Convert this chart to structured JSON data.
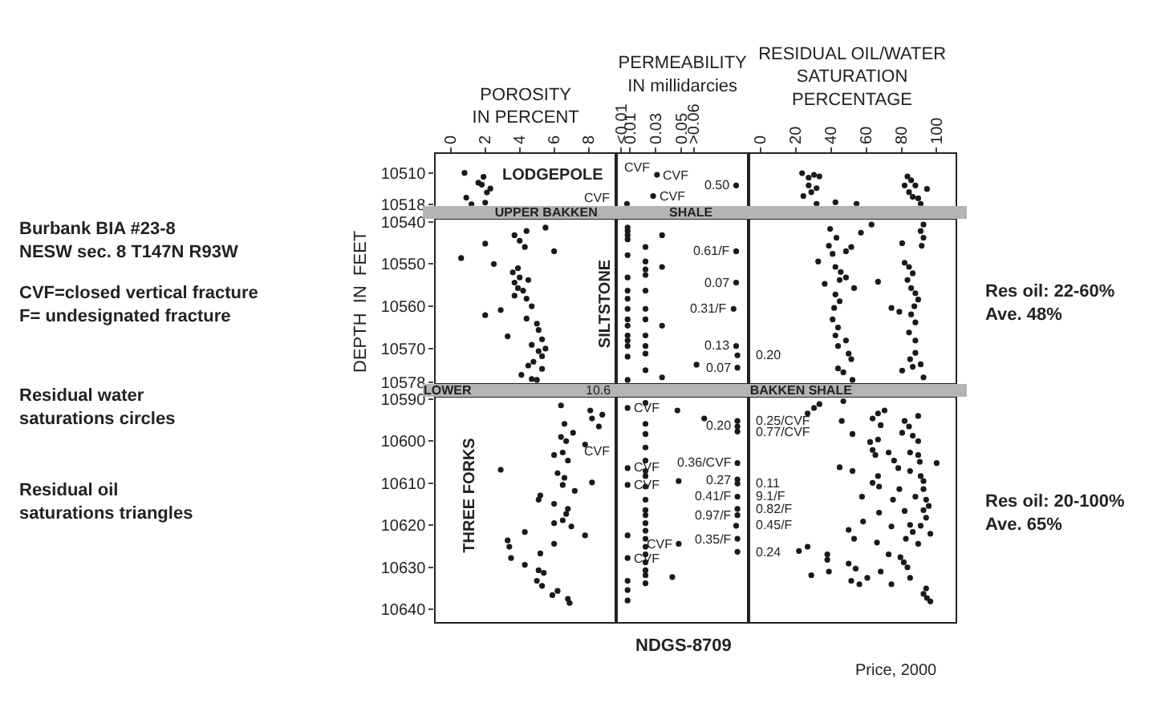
{
  "chart_data": [
    {
      "type": "scatter",
      "marker": "circle",
      "color": "#1a1a1a",
      "xlabel": "POROSITY\nIN PERCENT",
      "xlim": [
        -0.9,
        9.6
      ],
      "xticks": [
        0,
        2,
        4,
        6,
        8
      ],
      "ylim": [
        10518.4,
        10505.2
      ],
      "yticks": [
        10510,
        10518
      ],
      "x": [
        0.8,
        1.9,
        1.6,
        1.8,
        2.3,
        2.1,
        0.9,
        1.2,
        2.0
      ],
      "values": [
        10510,
        10511,
        10512.5,
        10513,
        10514,
        10515,
        10516.3,
        10518,
        10517.6
      ],
      "annotations": [
        "LODGEPOLE",
        "UPPER BAKKEN",
        "Burbank BIA #23-8\nNESW sec. 8 T147N R93W",
        "CVF=closed vertical fracture\nF= undesignated fracture",
        "Residual water\nsaturations circles",
        "Residual oil\nsaturations triangles"
      ]
    },
    {
      "type": "scatter",
      "marker": "circle",
      "color": "#1a1a1a",
      "xlabel": "PERMEABILITY\nIN millidarcies",
      "xlim": [
        -0.001,
        0.103
      ],
      "xticks": [
        {
          "value": 0.003,
          "label": "<0.01"
        },
        0.01,
        0.03,
        0.05,
        {
          "value": 0.06,
          "label": ">0.06"
        }
      ],
      "ylim": [
        10518.4,
        10505.2
      ],
      "tick_labels": "x",
      "x": [
        0.031,
        0.028,
        0.0075,
        0.093
      ],
      "values": [
        10510.5,
        10515.9,
        10517.9,
        10513.2
      ],
      "annotations": [
        "CVF",
        {
          "text": "CVF",
          "x": 0.031,
          "y": 10510.5
        },
        {
          "text": "CVF",
          "x": 0.028,
          "y": 10515.9
        },
        {
          "text": "CVF",
          "x": 0.0075,
          "y": 10517.9
        },
        {
          "text": "0.50",
          "x": 0.093,
          "y": 10513.2
        },
        "SHALE"
      ]
    },
    {
      "type": "scatter",
      "marker": "circle",
      "color": "#1a1a1a",
      "xlabel": "RESIDUAL OIL/WATER\nSATURATION\nPERCENTAGE",
      "xlim": [
        -6.6,
        110.6
      ],
      "xticks": [
        0,
        20,
        40,
        60,
        80,
        100
      ],
      "ylim": [
        10518.4,
        10505.2
      ],
      "tick_labels": "x",
      "x": [
        23.6,
        27.3,
        30.4,
        33.4,
        27.3,
        31.8,
        28.8,
        24.3,
        31.8,
        42.5,
        54.5,
        83.4,
        85.5,
        81.8,
        87.9,
        84.3,
        94.5,
        86.4,
        89.5,
        90.9
      ],
      "values": [
        10510.1,
        10511.2,
        10510.5,
        10510.9,
        10513.2,
        10513.9,
        10514.9,
        10515.9,
        10517.9,
        10517.5,
        10517.9,
        10510.9,
        10511.9,
        10513.2,
        10513.2,
        10514.9,
        10514.1,
        10516.1,
        10516.5,
        10517.9
      ]
    },
    {
      "type": "scatter",
      "marker": "circle",
      "color": "#1a1a1a",
      "ylabel": "DEPTH  IN  FEET",
      "xlim": [
        -0.9,
        9.6
      ],
      "ylim": [
        10578.2,
        10539.6
      ],
      "yticks": [
        10540,
        10550,
        10560,
        10570,
        10578
      ],
      "tick_labels": "y",
      "x": [
        5.5,
        3.7,
        4.4,
        4.0,
        4.3,
        2.0,
        6.0,
        0.6,
        2.5,
        3.6,
        3.9,
        4.0,
        4.5,
        3.7,
        3.9,
        4.2,
        3.7,
        4.4,
        2.9,
        2.0,
        4.7,
        4.4,
        5.0,
        5.1,
        3.3,
        5.3,
        4.7,
        5.5,
        5.1,
        5.3,
        4.8,
        4.5,
        4.1,
        5.3,
        4.7,
        5.0
      ],
      "values": [
        10541.4,
        10543.2,
        10542.2,
        10544.5,
        10546,
        10545.2,
        10547,
        10548.6,
        10550,
        10552,
        10551,
        10553.2,
        10553.8,
        10554.4,
        10555.7,
        10556.3,
        10557.5,
        10558.2,
        10560.9,
        10562.1,
        10560,
        10562.9,
        10564.1,
        10565.6,
        10567.1,
        10567.8,
        10569.1,
        10570,
        10570.6,
        10571.8,
        10573.1,
        10574,
        10576.2,
        10574.8,
        10577.2,
        10577.4
      ],
      "annotations": [
        "LOWER",
        "SILTSTONE"
      ]
    },
    {
      "type": "scatter",
      "marker": "circle",
      "color": "#1a1a1a",
      "xlim": [
        -0.001,
        0.103
      ],
      "ylim": [
        10578.2,
        10539.6
      ],
      "tick_labels": false,
      "x": [
        0.008,
        0.008,
        0.008,
        0.008,
        0.008,
        0.008,
        0.008,
        0.008,
        0.008,
        0.008,
        0.008,
        0.008,
        0.008,
        0.008,
        0.008,
        0.008,
        0.022,
        0.022,
        0.022,
        0.022,
        0.022,
        0.022,
        0.022,
        0.022,
        0.022,
        0.022,
        0.022,
        0.035,
        0.035,
        0.035,
        0.035,
        0.062,
        0.093,
        0.093,
        0.091,
        0.093,
        0.094,
        0.094
      ],
      "values": [
        10541.4,
        10542.2,
        10543.2,
        10544.2,
        10547.9,
        10553.2,
        10556.3,
        10558.2,
        10560.6,
        10563.1,
        10564.6,
        10566.9,
        10568.1,
        10569.4,
        10571.9,
        10577.4,
        10546,
        10549.4,
        10551.3,
        10552.6,
        10556.3,
        10560.6,
        10563.1,
        10566.9,
        10569.4,
        10571.2,
        10575.1,
        10543.2,
        10550.7,
        10564.6,
        10576.8,
        10573.8,
        10547,
        10554.4,
        10560.6,
        10569.4,
        10571.6,
        10574.5
      ],
      "annotations": [
        {
          "text": "0.61/F",
          "x": 0.093,
          "y": 10547
        },
        {
          "text": "0.07",
          "x": 0.093,
          "y": 10554.4
        },
        {
          "text": "0.31/F",
          "x": 0.091,
          "y": 10560.6
        },
        {
          "text": "0.13",
          "x": 0.093,
          "y": 10569.4
        },
        {
          "text": "0.20",
          "x": 0.094,
          "y": 10571.6
        },
        {
          "text": "0.07",
          "x": 0.094,
          "y": 10574.5
        },
        "BAKKEN SHALE"
      ]
    },
    {
      "type": "scatter",
      "marker": "circle",
      "color": "#1a1a1a",
      "xlim": [
        -6.6,
        110.6
      ],
      "ylim": [
        10578.2,
        10539.6
      ],
      "tick_labels": false,
      "x": [
        63,
        57,
        39.5,
        43.1,
        38.8,
        51.5,
        48.5,
        40.9,
        32.7,
        42.5,
        45.5,
        48.5,
        44.9,
        36.4,
        66.7,
        53.1,
        42.5,
        44.9,
        41.8,
        74.3,
        40.9,
        78.8,
        44,
        42.5,
        48.5,
        44,
        92.5,
        90.9,
        92.5,
        91.5,
        80.4,
        81.8,
        84.3,
        86.4,
        83.4,
        85.5,
        87.9,
        89.5,
        87.3,
        85.5,
        87.9,
        84.3,
        87.9,
        50,
        51.5,
        44,
        47,
        52.2,
        87.9,
        84.9,
        86.4,
        80.4,
        90.9,
        92.5
      ],
      "values": [
        10540.7,
        10542.6,
        10541.7,
        10543.8,
        10545.7,
        10546,
        10547,
        10547.6,
        10549.4,
        10550.7,
        10551.9,
        10553.2,
        10553.8,
        10554.7,
        10554.2,
        10555.7,
        10557.2,
        10558.8,
        10560.4,
        10560.4,
        10563.1,
        10561.3,
        10565,
        10566.9,
        10568.1,
        10569.4,
        10540.7,
        10542.2,
        10543.8,
        10545.7,
        10545.1,
        10549.7,
        10550.7,
        10552.2,
        10553.8,
        10555.7,
        10556.9,
        10558.4,
        10560,
        10561.9,
        10563.8,
        10566.2,
        10568.1,
        10571.2,
        10572.5,
        10574.7,
        10575.6,
        10577.4,
        10571,
        10572.5,
        10574.3,
        10575.2,
        10573.7,
        10576.8
      ],
      "annotations": [
        "Res oil: 22-60%\nAve. 48%"
      ]
    },
    {
      "type": "scatter",
      "marker": "circle",
      "color": "#1a1a1a",
      "xlim": [
        -0.9,
        9.6
      ],
      "ylim": [
        10643,
        10589.6
      ],
      "yticks": [
        10590,
        10600,
        10610,
        10620,
        10630,
        10640
      ],
      "tick_labels": "y",
      "x": [
        6.4,
        8.1,
        8.2,
        8.8,
        8.6,
        6.6,
        6.4,
        7.1,
        6.7,
        7.8,
        6.0,
        6.5,
        6.8,
        2.9,
        6.2,
        6.6,
        8.2,
        6.5,
        7.2,
        5.2,
        5.1,
        6.0,
        6.8,
        6.7,
        6.5,
        6.0,
        7.0,
        4.3,
        7.8,
        6.0,
        3.3,
        3.4,
        3.5,
        5.2,
        4.3,
        5.1,
        5.4,
        5.0,
        5.3,
        6.2,
        5.9,
        6.8,
        6.9
      ],
      "values": [
        10591.5,
        10592.7,
        10594.6,
        10593.7,
        10596.5,
        10595.9,
        10599,
        10598,
        10600,
        10600.8,
        10603.3,
        10602.7,
        10604.6,
        10606.8,
        10607.6,
        10608.7,
        10609.8,
        10610.4,
        10611.8,
        10612.9,
        10613.9,
        10614.9,
        10616.1,
        10617.3,
        10618.8,
        10619.5,
        10620.3,
        10621.6,
        10622.4,
        10624.4,
        10623.6,
        10625.1,
        10627.8,
        10626.7,
        10629.4,
        10630.7,
        10631.3,
        10633.2,
        10634.4,
        10635.6,
        10636.6,
        10637.5,
        10638.5
      ],
      "annotations": [
        "THREE FORKS",
        "10.6"
      ]
    },
    {
      "type": "scatter",
      "marker": "circle",
      "color": "#1a1a1a",
      "xlim": [
        -0.001,
        0.103
      ],
      "ylim": [
        10643,
        10589.6
      ],
      "tick_labels": false,
      "x": [
        0.008,
        0.008,
        0.008,
        0.008,
        0.008,
        0.008,
        0.008,
        0.008,
        0.022,
        0.022,
        0.022,
        0.022,
        0.022,
        0.022,
        0.022,
        0.022,
        0.022,
        0.022,
        0.022,
        0.022,
        0.022,
        0.022,
        0.022,
        0.022,
        0.022,
        0.022,
        0.022,
        0.022,
        0.047,
        0.068,
        0.048,
        0.048,
        0.043,
        0.094,
        0.094,
        0.094,
        0.094,
        0.094,
        0.094,
        0.094,
        0.094,
        0.094,
        0.093,
        0.094,
        0.094
      ],
      "values": [
        10592.1,
        10606.4,
        10610.4,
        10622.4,
        10627.8,
        10633.2,
        10635.4,
        10637.9,
        10590.9,
        10595.9,
        10598.3,
        10601.5,
        10604.6,
        10607.1,
        10608.3,
        10610.8,
        10613.9,
        10616.4,
        10617.6,
        10619.5,
        10621.3,
        10623.2,
        10625.1,
        10626.9,
        10628.8,
        10630.7,
        10631.9,
        10633.8,
        10592.7,
        10594.6,
        10609.5,
        10624.4,
        10632.3,
        10595.2,
        10596.5,
        10597.7,
        10605.2,
        10609.1,
        10610.1,
        10613.2,
        10616.1,
        10617.6,
        10620.1,
        10623.2,
        10626.3
      ],
      "annotations": [
        {
          "text": "0.20",
          "x": 0.094,
          "y": 10596.5
        },
        {
          "text": "0.25/CVF",
          "x": 0.094,
          "y": 10595.2
        },
        {
          "text": "0.77/CVF",
          "x": 0.094,
          "y": 10597.7
        },
        {
          "text": "0.36/CVF",
          "x": 0.094,
          "y": 10605.2
        },
        {
          "text": "0.27",
          "x": 0.094,
          "y": 10609.1
        },
        {
          "text": "0.11",
          "x": 0.094,
          "y": 10610.1
        },
        {
          "text": "0.41/F",
          "x": 0.094,
          "y": 10613.2
        },
        {
          "text": "9.1/F",
          "x": 0.094,
          "y": 10613.2
        },
        {
          "text": "0.82/F",
          "x": 0.094,
          "y": 10616.1
        },
        {
          "text": "0.97/F",
          "x": 0.094,
          "y": 10617.6
        },
        {
          "text": "0.45/F",
          "x": 0.093,
          "y": 10620.1
        },
        {
          "text": "0.35/F",
          "x": 0.094,
          "y": 10623.2
        },
        {
          "text": "0.24",
          "x": 0.094,
          "y": 10626.3
        },
        {
          "text": "CVF",
          "x": 0.008,
          "y": 10592.1
        },
        {
          "text": "CVF",
          "x": 0.022,
          "y": 10602.4
        },
        {
          "text": "CVF",
          "x": 0.008,
          "y": 10606.4
        },
        {
          "text": "CVF",
          "x": 0.008,
          "y": 10610.4
        },
        {
          "text": "CVF",
          "x": 0.048,
          "y": 10624.4
        },
        {
          "text": "CVF",
          "x": 0.008,
          "y": 10627.8
        },
        "NDGS-8709"
      ]
    },
    {
      "type": "scatter",
      "marker": "circle",
      "color": "#1a1a1a",
      "xlim": [
        -6.6,
        110.6
      ],
      "ylim": [
        10643,
        10589.6
      ],
      "tick_labels": false,
      "x": [
        33.4,
        30.4,
        26.7,
        47,
        66.7,
        70.4,
        63.6,
        46.1,
        68.2,
        81.8,
        89.5,
        84.3,
        80.4,
        86.4,
        52.2,
        62.2,
        66.7,
        89.5,
        63.6,
        72.7,
        84.9,
        89.5,
        65.2,
        75.8,
        90.4,
        100,
        44.9,
        52.2,
        78.2,
        84.9,
        90.9,
        66.7,
        63.6,
        92.5,
        67.3,
        78.8,
        92.5,
        57.6,
        75.2,
        87.9,
        94,
        95.5,
        81.8,
        92.5,
        67.3,
        94,
        58.2,
        74.3,
        84.9,
        90.9,
        50,
        86.4,
        96.4,
        53.1,
        82.5,
        66.1,
        89.5,
        26.7,
        21.8,
        37.9,
        72.7,
        79.4,
        37.9,
        50,
        81.3,
        54,
        68.2,
        83.4,
        38.8,
        28.8,
        60.6,
        51.5,
        84.9,
        56.1,
        74.3,
        94,
        92.5,
        94.5,
        96.4
      ],
      "values": [
        10591.2,
        10592.1,
        10593.4,
        10590.5,
        10593.4,
        10592.7,
        10594.6,
        10595.2,
        10596.2,
        10595.2,
        10594,
        10596.5,
        10598,
        10598.7,
        10598.3,
        10600.2,
        10599.6,
        10600,
        10602.1,
        10602.7,
        10602.7,
        10603.3,
        10603.3,
        10604.6,
        10604.9,
        10605.2,
        10606.2,
        10607.1,
        10606.4,
        10607.1,
        10608.3,
        10608.3,
        10609.9,
        10609.5,
        10610.8,
        10611.4,
        10611.4,
        10613.2,
        10613.9,
        10613.2,
        10613.9,
        10615.4,
        10616.6,
        10616.4,
        10617,
        10618.2,
        10619.1,
        10620.3,
        10619.9,
        10620.1,
        10621.1,
        10621.6,
        10622,
        10623.2,
        10623.2,
        10624.1,
        10624.4,
        10625.1,
        10626.1,
        10626.9,
        10626.9,
        10627.6,
        10628.2,
        10629.1,
        10628.8,
        10630.3,
        10631,
        10630,
        10631,
        10631.9,
        10632.5,
        10633.2,
        10632.5,
        10634,
        10634,
        10635,
        10636.3,
        10637.3,
        10638.1
      ],
      "annotations": [
        "Res oil: 20-100%\nAve. 65%",
        "Price, 2000"
      ]
    }
  ]
}
